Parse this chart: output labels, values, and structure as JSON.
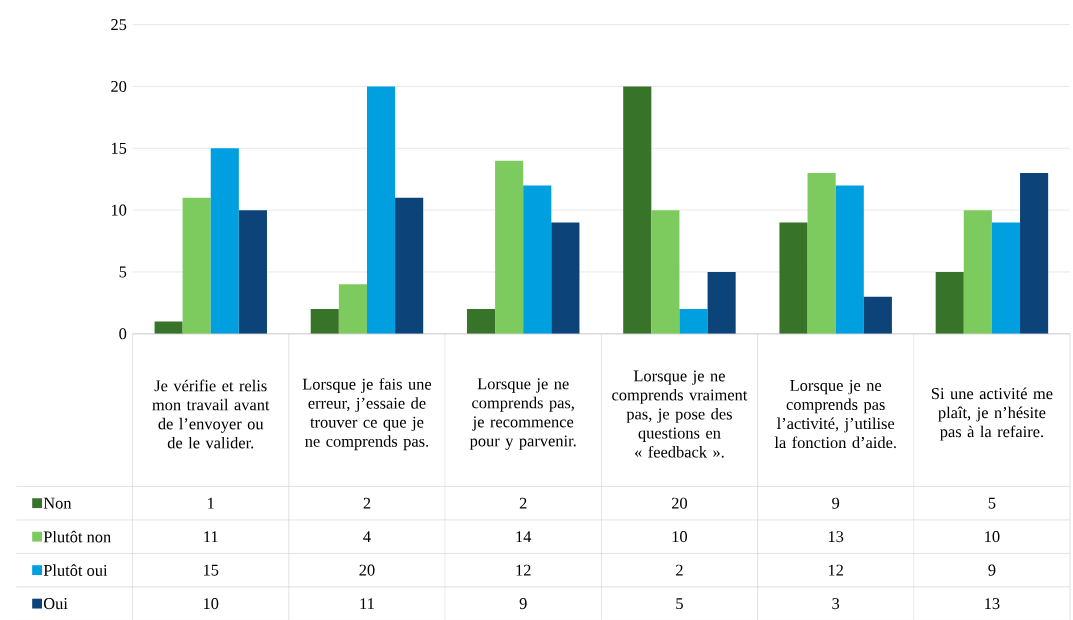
{
  "chart_data": {
    "type": "bar",
    "categories": [
      "Je vérifie et relis mon travail avant de l’envoyer ou de le valider.",
      "Lorsque je fais une erreur, j’essaie de trouver ce que je ne comprends pas.",
      "Lorsque je ne comprends pas, je recommence pour y parvenir.",
      "Lorsque je ne comprends vraiment pas, je pose des questions en « feedback ».",
      "Lorsque je ne comprends pas l’activité, j’utilise la fonction d’aide.",
      "Si une activité me plaît, je n’hésite pas à la refaire."
    ],
    "series": [
      {
        "name": "Non",
        "color": "#38732a",
        "values": [
          1,
          2,
          2,
          20,
          9,
          5
        ]
      },
      {
        "name": "Plutôt non",
        "color": "#7dca5f",
        "values": [
          11,
          4,
          14,
          10,
          13,
          10
        ]
      },
      {
        "name": "Plutôt oui",
        "color": "#009fdf",
        "values": [
          15,
          20,
          12,
          2,
          12,
          9
        ]
      },
      {
        "name": "Oui",
        "color": "#0c4479",
        "values": [
          10,
          11,
          9,
          5,
          3,
          13
        ]
      }
    ],
    "ylim": [
      0,
      25
    ],
    "yticks": [
      0,
      5,
      10,
      15,
      20,
      25
    ],
    "grid": "y",
    "legend": "bottom",
    "data_labels": true
  }
}
